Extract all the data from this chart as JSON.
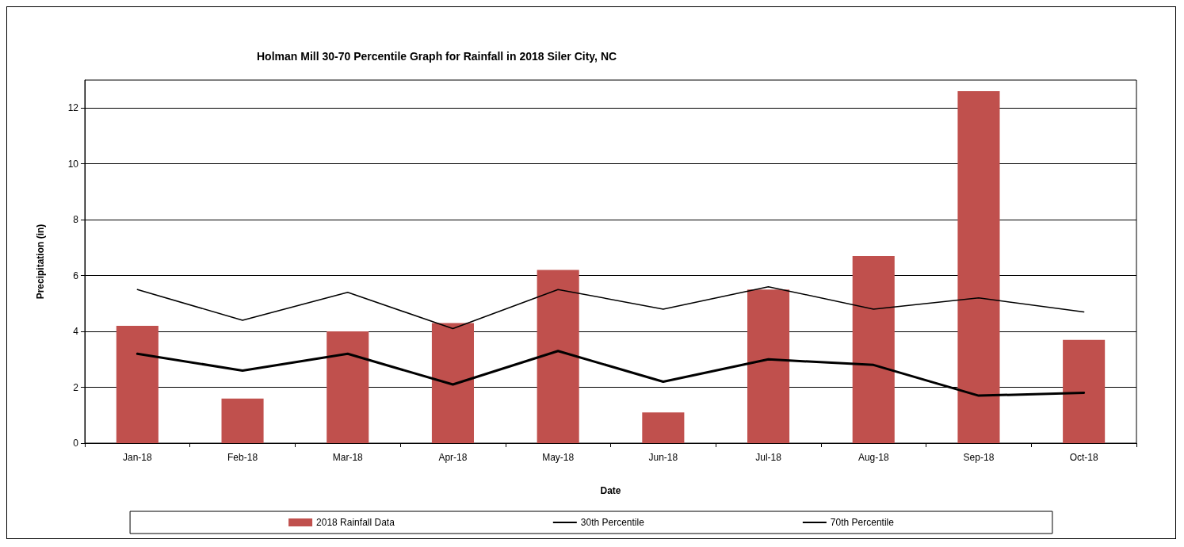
{
  "chart_data": {
    "type": "bar",
    "title": "Holman Mill 30-70 Percentile Graph for Rainfall in 2018 Siler City, NC",
    "xlabel": "Date",
    "ylabel": "Precipitation (in)",
    "categories": [
      "Jan-18",
      "Feb-18",
      "Mar-18",
      "Apr-18",
      "May-18",
      "Jun-18",
      "Jul-18",
      "Aug-18",
      "Sep-18",
      "Oct-18"
    ],
    "series": [
      {
        "name": "2018 Rainfall Data",
        "color": "#c0504d",
        "values": [
          4.2,
          1.6,
          4.0,
          4.3,
          6.2,
          1.1,
          5.5,
          6.7,
          12.6,
          3.7
        ]
      },
      {
        "name": "30th Percentile",
        "type": "line",
        "color": "#000000",
        "values": [
          3.2,
          2.6,
          3.2,
          2.1,
          3.3,
          2.2,
          3.0,
          2.8,
          1.7,
          1.8
        ]
      },
      {
        "name": "70th Percentile",
        "type": "line",
        "color": "#000000",
        "values": [
          5.5,
          4.4,
          5.4,
          4.1,
          5.5,
          4.8,
          5.6,
          4.8,
          5.2,
          4.7
        ]
      }
    ],
    "ylim": [
      0,
      13
    ],
    "yticks": [
      0,
      2,
      4,
      6,
      8,
      10,
      12
    ],
    "grid": "y",
    "legend": "bottom",
    "marker": "none",
    "line_style": "solid"
  }
}
